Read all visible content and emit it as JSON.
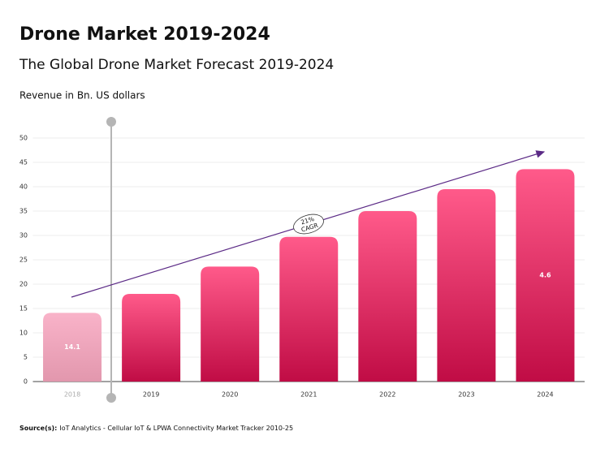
{
  "chart_data": {
    "type": "bar",
    "title": "Drone Market 2019-2024",
    "subtitle": "The Global Drone Market Forecast 2019-2024",
    "y_label": "Revenue in Bn. US dollars",
    "categories": [
      "2018",
      "2019",
      "2020",
      "2021",
      "2022",
      "2023",
      "2024"
    ],
    "values": [
      14.1,
      18,
      23.6,
      29.7,
      35,
      39.5,
      43.6
    ],
    "value_labels": [
      "14.1",
      null,
      null,
      null,
      null,
      null,
      null
    ],
    "bar_note": "4.6",
    "color": "#e8245f",
    "muted_color": "#f2a2bd",
    "muted_categories": [
      "2018"
    ],
    "ylim": [
      0,
      50
    ],
    "yticks": [
      0,
      5,
      10,
      15,
      20,
      25,
      30,
      35,
      40,
      45,
      50
    ],
    "grid": true,
    "cagr_label": [
      "21%",
      "CAGR"
    ],
    "source_label": "Source(s):",
    "source_text": "IoT Analytics - Cellular IoT & LPWA Connectivity Market Tracker 2010-25"
  }
}
